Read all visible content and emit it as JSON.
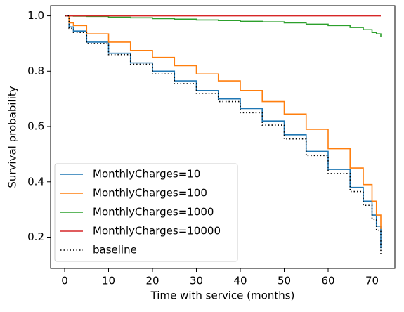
{
  "chart_data": {
    "type": "step",
    "xlabel": "Time with service (months)",
    "ylabel": "Survival probability",
    "x": [
      0,
      1,
      2,
      5,
      10,
      15,
      20,
      25,
      30,
      35,
      40,
      45,
      50,
      55,
      60,
      65,
      68,
      70,
      71,
      72
    ],
    "series": [
      {
        "name": "MonthlyCharges=10",
        "color": "#1f77b4",
        "linestyle": "solid",
        "values": [
          1.0,
          0.96,
          0.945,
          0.905,
          0.865,
          0.83,
          0.8,
          0.765,
          0.73,
          0.7,
          0.665,
          0.62,
          0.57,
          0.51,
          0.445,
          0.38,
          0.33,
          0.28,
          0.24,
          0.16
        ]
      },
      {
        "name": "MonthlyCharges=100",
        "color": "#ff7f0e",
        "linestyle": "solid",
        "values": [
          1.0,
          0.975,
          0.965,
          0.935,
          0.905,
          0.875,
          0.85,
          0.82,
          0.79,
          0.765,
          0.73,
          0.69,
          0.645,
          0.59,
          0.52,
          0.45,
          0.39,
          0.33,
          0.28,
          0.23
        ]
      },
      {
        "name": "MonthlyCharges=1000",
        "color": "#2ca02c",
        "linestyle": "solid",
        "values": [
          1.0,
          1.0,
          0.999,
          0.998,
          0.995,
          0.993,
          0.99,
          0.988,
          0.985,
          0.983,
          0.98,
          0.978,
          0.975,
          0.97,
          0.965,
          0.958,
          0.95,
          0.94,
          0.935,
          0.925
        ]
      },
      {
        "name": "MonthlyCharges=10000",
        "color": "#d62728",
        "linestyle": "solid",
        "values": [
          1.0,
          1.0,
          1.0,
          1.0,
          1.0,
          1.0,
          1.0,
          1.0,
          1.0,
          1.0,
          1.0,
          1.0,
          1.0,
          1.0,
          1.0,
          1.0,
          1.0,
          1.0,
          1.0,
          1.0
        ]
      },
      {
        "name": "baseline",
        "color": "#000000",
        "linestyle": "dotted",
        "values": [
          1.0,
          0.955,
          0.94,
          0.9,
          0.86,
          0.825,
          0.79,
          0.755,
          0.72,
          0.69,
          0.65,
          0.605,
          0.555,
          0.495,
          0.43,
          0.365,
          0.315,
          0.265,
          0.225,
          0.14
        ]
      }
    ],
    "xlim": [
      -3.2,
      75.2
    ],
    "xticks": [
      0,
      10,
      20,
      30,
      40,
      50,
      60,
      70
    ],
    "ylim": [
      0.087,
      1.037
    ],
    "yticks": [
      0.2,
      0.4,
      0.6,
      0.8,
      {
        "value": 1.0,
        "label": "1.0"
      }
    ],
    "grid": false,
    "legend": "lower left"
  }
}
